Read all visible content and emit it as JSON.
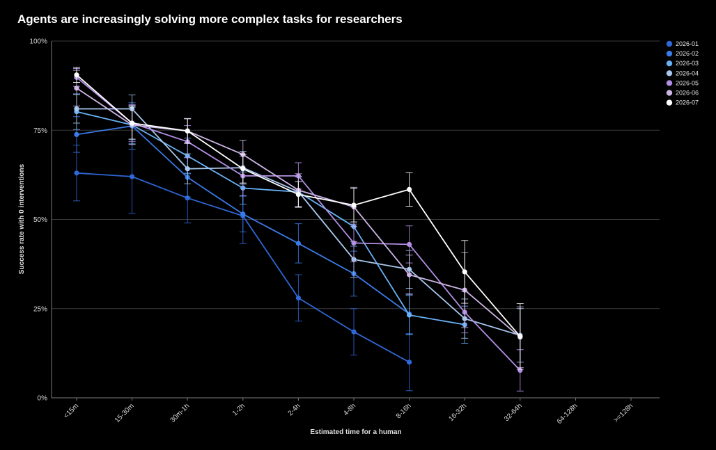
{
  "colors": {
    "background": "#000000",
    "grid": "#3a3a3a",
    "axis": "#7a7a7a"
  },
  "chart_data": {
    "type": "line",
    "title": "Agents are increasingly solving more complex tasks for researchers",
    "xlabel": "Estimated time for a human",
    "ylabel": "Success rate with 0 interventions",
    "categories": [
      "<15m",
      "15-30m",
      "30m-1h",
      "1-2h",
      "2-4h",
      "4-8h",
      "8-16h",
      "16-32h",
      "32-64h",
      "64-128h",
      ">=128h"
    ],
    "ylim": [
      0,
      100
    ],
    "yticks": [
      0,
      25,
      50,
      75,
      100
    ],
    "ytick_labels": [
      "0%",
      "25%",
      "50%",
      "75%",
      "100%"
    ],
    "grid": "horizontal",
    "legend_position": "top-right",
    "series": [
      {
        "name": "2026-01",
        "color": "#2f67d6",
        "values": [
          63,
          62,
          56,
          51,
          28,
          18.5,
          10,
          null,
          null,
          null,
          null
        ],
        "errors": [
          7.8,
          10.3,
          7,
          7.8,
          6.5,
          6.5,
          8,
          null,
          null,
          null,
          null
        ]
      },
      {
        "name": "2026-02",
        "color": "#3a7be8",
        "values": [
          73.8,
          76.2,
          61.8,
          51.5,
          43.3,
          34.8,
          23.5,
          null,
          null,
          null,
          null
        ],
        "errors": [
          5,
          6.5,
          5.5,
          5,
          5.5,
          6.3,
          5.8,
          null,
          null,
          null,
          null
        ]
      },
      {
        "name": "2026-03",
        "color": "#69b1f5",
        "values": [
          80.2,
          76.5,
          67.8,
          58.8,
          57.7,
          48,
          23.2,
          20.5,
          null,
          null,
          null
        ],
        "errors": [
          5,
          5.3,
          5,
          4.5,
          4.2,
          5.5,
          5.5,
          5.2,
          null,
          null,
          null
        ]
      },
      {
        "name": "2026-04",
        "color": "#a8c8ee",
        "values": [
          81,
          81,
          64.2,
          64.5,
          57.8,
          38.8,
          36,
          22.2,
          17.5,
          null,
          null
        ],
        "errors": [
          4,
          3.9,
          4.2,
          4.6,
          4.3,
          5,
          5.3,
          5.5,
          7.5,
          null,
          null
        ]
      },
      {
        "name": "2026-05",
        "color": "#b38fe3",
        "values": [
          89.8,
          77,
          71.8,
          62.2,
          62.2,
          43.4,
          43,
          24,
          7.7,
          null,
          null
        ],
        "errors": [
          2.5,
          5.2,
          4.5,
          5.5,
          3.7,
          5.3,
          5.2,
          5.8,
          5.8,
          null,
          null
        ]
      },
      {
        "name": "2026-06",
        "color": "#cdb6e6",
        "values": [
          86.8,
          76.5,
          74.8,
          68.2,
          58.2,
          53.5,
          34.5,
          30.2,
          17,
          null,
          null
        ],
        "errors": [
          5,
          5.5,
          3.5,
          4,
          4.6,
          5.5,
          5.5,
          10.5,
          8.5,
          null,
          null
        ]
      },
      {
        "name": "2026-07",
        "color": "#ffffff",
        "values": [
          90.5,
          77,
          74.8,
          64.2,
          57,
          54,
          58.4,
          35.3,
          17.2,
          null,
          null
        ],
        "errors": [
          2.1,
          4.5,
          3.4,
          4,
          3.6,
          4.7,
          4.7,
          8.8,
          9.2,
          null,
          null
        ]
      }
    ]
  }
}
